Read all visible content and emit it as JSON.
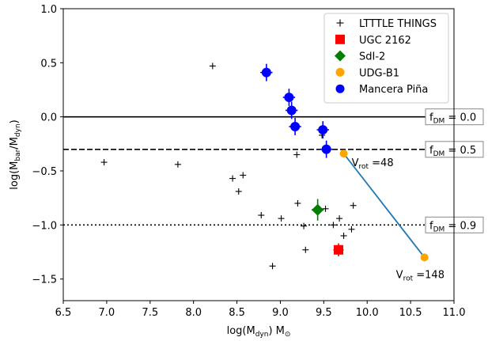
{
  "chart_data": {
    "type": "scatter",
    "xlabel_main": "log(M",
    "xlabel_sub": "dyn",
    "xlabel_tail": ") M",
    "xlabel_sun": "⊙",
    "ylabel_main": "log(M",
    "ylabel_sub1": "bar",
    "ylabel_mid": "/M",
    "ylabel_sub2": "dyn",
    "ylabel_tail": ")",
    "xlim": [
      6.5,
      11.0
    ],
    "ylim": [
      -1.7,
      1.0
    ],
    "xticks": [
      6.5,
      7.0,
      7.5,
      8.0,
      8.5,
      9.0,
      9.5,
      10.0,
      10.5,
      11.0
    ],
    "xtick_labels": [
      "6.5",
      "7.0",
      "7.5",
      "8.0",
      "8.5",
      "9.0",
      "9.5",
      "10.0",
      "10.5",
      "11.0"
    ],
    "yticks": [
      1.0,
      0.5,
      0.0,
      -0.5,
      -1.0,
      -1.5
    ],
    "ytick_labels": [
      "1.0",
      "0.5",
      "0.0",
      "−0.5",
      "−1.0",
      "−1.5"
    ],
    "reference_lines": [
      {
        "y": 0.0,
        "style": "solid",
        "label_pre": "f",
        "label_sub": "DM",
        "label_post": " = 0.0"
      },
      {
        "y": -0.301,
        "style": "dashed",
        "label_pre": "f",
        "label_sub": "DM",
        "label_post": " = 0.5"
      },
      {
        "y": -1.0,
        "style": "dotted",
        "label_pre": "f",
        "label_sub": "DM",
        "label_post": " = 0.9"
      }
    ],
    "legend": {
      "position": "upper right",
      "entries": [
        {
          "label": "LTTTLE THINGS",
          "marker": "plus",
          "color": "#000000"
        },
        {
          "label": "UGC 2162",
          "marker": "square",
          "color": "#ff0000"
        },
        {
          "label": "SdI-2",
          "marker": "diamond",
          "color": "#008000"
        },
        {
          "label": "UDG-B1",
          "marker": "circle",
          "color": "#ffa500"
        },
        {
          "label": "Mancera Piña",
          "marker": "circle",
          "color": "#0000ff"
        }
      ]
    },
    "series": [
      {
        "name": "LTTTLE THINGS",
        "marker": "plus",
        "color": "#000000",
        "points": [
          [
            6.97,
            -0.42
          ],
          [
            7.82,
            -0.44
          ],
          [
            8.22,
            0.47
          ],
          [
            8.45,
            -0.57
          ],
          [
            8.52,
            -0.69
          ],
          [
            8.57,
            -0.54
          ],
          [
            8.78,
            -0.91
          ],
          [
            8.91,
            -1.38
          ],
          [
            9.01,
            -0.94
          ],
          [
            9.19,
            -0.35
          ],
          [
            9.2,
            -0.8
          ],
          [
            9.27,
            -1.01
          ],
          [
            9.29,
            -1.23
          ],
          [
            9.48,
            -0.17
          ],
          [
            9.52,
            -0.85
          ],
          [
            9.61,
            -1.0
          ],
          [
            9.68,
            -0.94
          ],
          [
            9.73,
            -1.1
          ],
          [
            9.82,
            -1.04
          ],
          [
            9.84,
            -0.82
          ]
        ]
      },
      {
        "name": "UGC 2162",
        "marker": "square",
        "color": "#ff0000",
        "points": [
          [
            9.67,
            -1.23
          ]
        ],
        "xerr": 0.06,
        "yerr": 0.06
      },
      {
        "name": "SdI-2",
        "marker": "diamond",
        "color": "#008000",
        "points": [
          [
            9.43,
            -0.86
          ]
        ],
        "xerr": 0.07,
        "yerr": 0.1
      },
      {
        "name": "UDG-B1",
        "marker": "circle",
        "color": "#ffa500",
        "points": [
          [
            9.73,
            -0.34
          ],
          [
            10.66,
            -1.3
          ]
        ]
      },
      {
        "name": "Mancera Piña",
        "marker": "circle",
        "color": "#0000ff",
        "points": [
          [
            8.84,
            0.41
          ],
          [
            9.1,
            0.18
          ],
          [
            9.13,
            0.06
          ],
          [
            9.17,
            -0.09
          ],
          [
            9.49,
            -0.12
          ],
          [
            9.53,
            -0.3
          ]
        ],
        "xerr": 0.07,
        "yerr": 0.08
      }
    ],
    "connector": {
      "from": [
        9.73,
        -0.34
      ],
      "to": [
        10.66,
        -1.3
      ],
      "color": "#1f77b4"
    },
    "point_annotations": [
      {
        "at": [
          9.73,
          -0.34
        ],
        "pre": "V",
        "sub": "rot",
        "post": " =48",
        "anchor": "right-below"
      },
      {
        "at": [
          10.66,
          -1.3
        ],
        "pre": "V",
        "sub": "rot",
        "post": " =148",
        "anchor": "below"
      }
    ]
  }
}
